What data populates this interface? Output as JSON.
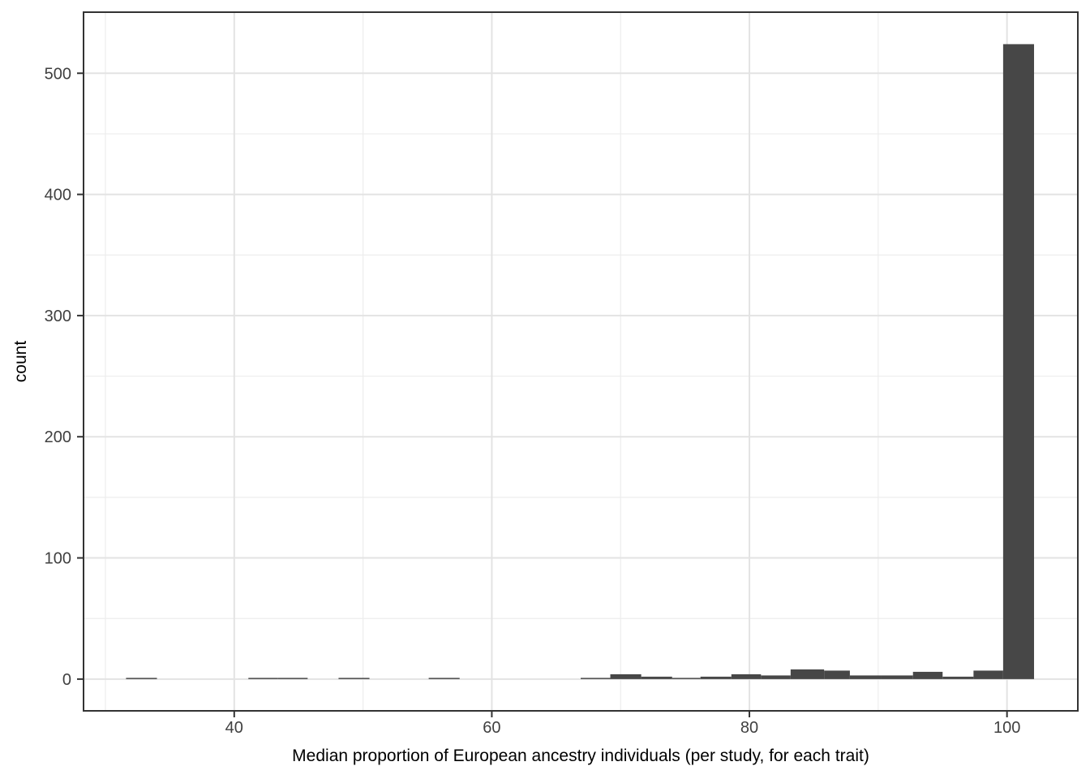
{
  "chart_data": {
    "type": "histogram",
    "title": "",
    "xlabel": "Median proportion of European ancestry individuals (per study, for each trait)",
    "ylabel": "count",
    "xlim": [
      28.3,
      105.5
    ],
    "ylim": [
      -26.2,
      550.4
    ],
    "x_major_ticks": [
      40,
      60,
      80,
      100
    ],
    "x_minor_gridlines": [
      30,
      50,
      70,
      90
    ],
    "y_major_ticks": [
      0,
      100,
      200,
      300,
      400,
      500
    ],
    "y_minor_gridlines": [
      50,
      150,
      250,
      350,
      450
    ],
    "grid": true,
    "legend_position": "none",
    "bins": [
      {
        "x0": 31.6,
        "x1": 34.0,
        "count": 1
      },
      {
        "x0": 41.1,
        "x1": 43.4,
        "count": 1
      },
      {
        "x0": 43.4,
        "x1": 45.7,
        "count": 1
      },
      {
        "x0": 48.1,
        "x1": 50.5,
        "count": 1
      },
      {
        "x0": 55.1,
        "x1": 57.5,
        "count": 1
      },
      {
        "x0": 66.9,
        "x1": 69.2,
        "count": 1
      },
      {
        "x0": 69.2,
        "x1": 71.6,
        "count": 4
      },
      {
        "x0": 71.6,
        "x1": 74.0,
        "count": 2
      },
      {
        "x0": 74.0,
        "x1": 76.2,
        "count": 1
      },
      {
        "x0": 76.2,
        "x1": 78.6,
        "count": 2
      },
      {
        "x0": 78.6,
        "x1": 80.9,
        "count": 4
      },
      {
        "x0": 80.9,
        "x1": 83.2,
        "count": 3
      },
      {
        "x0": 83.2,
        "x1": 85.8,
        "count": 8
      },
      {
        "x0": 85.8,
        "x1": 87.8,
        "count": 7
      },
      {
        "x0": 87.8,
        "x1": 90.2,
        "count": 3
      },
      {
        "x0": 90.2,
        "x1": 92.7,
        "count": 3
      },
      {
        "x0": 92.7,
        "x1": 95.0,
        "count": 6
      },
      {
        "x0": 95.0,
        "x1": 97.4,
        "count": 2
      },
      {
        "x0": 97.4,
        "x1": 99.7,
        "count": 7
      },
      {
        "x0": 99.7,
        "x1": 102.1,
        "count": 524
      }
    ],
    "colors": {
      "bar_fill": "#474747",
      "panel_background": "#ffffff",
      "panel_border": "#333333",
      "grid_major": "#e3e3e3",
      "grid_minor": "#ededed",
      "tick_mark": "#333333",
      "tick_label": "#404040",
      "axis_title": "#000000"
    }
  }
}
